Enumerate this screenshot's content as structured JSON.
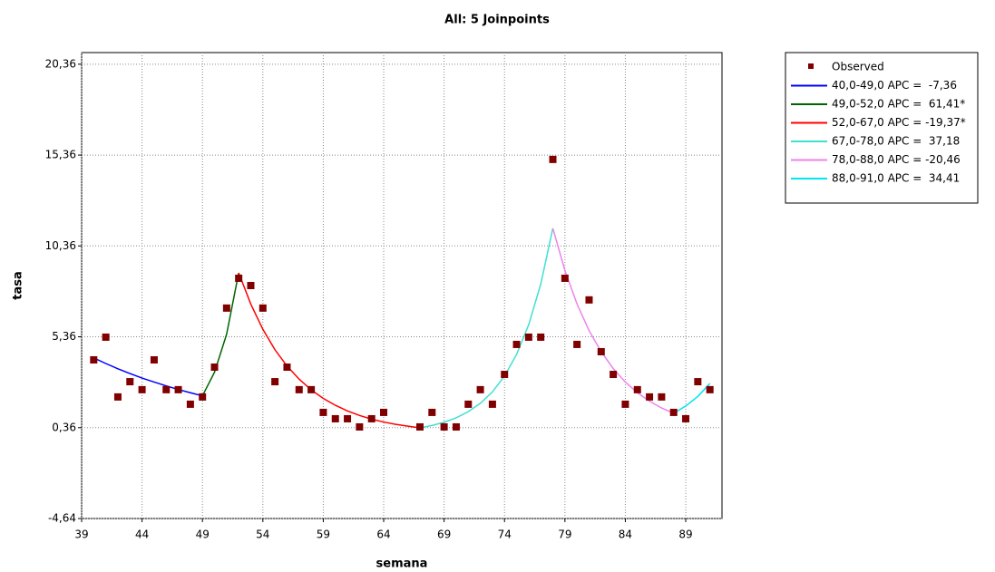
{
  "chart_data": {
    "type": "line",
    "title": "All: 5 Joinpoints",
    "x_label": "semana",
    "y_label": "tasa",
    "xlim": [
      39,
      92
    ],
    "xticks": [
      39,
      44,
      49,
      54,
      59,
      64,
      69,
      74,
      79,
      84,
      89
    ],
    "ylim": [
      -4.64,
      21.0
    ],
    "yticks": [
      {
        "value": -4.64,
        "label": "-4,64"
      },
      {
        "value": 0.36,
        "label": "0,36"
      },
      {
        "value": 5.36,
        "label": "5,36"
      },
      {
        "value": 10.36,
        "label": "10,36"
      },
      {
        "value": 15.36,
        "label": "15,36"
      },
      {
        "value": 20.36,
        "label": "20,36"
      }
    ],
    "grid": true,
    "legend": "outside-right",
    "series": [
      {
        "name": "Observed",
        "type": "scatter",
        "color": "#800000",
        "x": [
          40,
          41,
          42,
          43,
          44,
          45,
          46,
          47,
          48,
          49,
          50,
          51,
          52,
          53,
          54,
          55,
          56,
          57,
          58,
          59,
          60,
          61,
          62,
          63,
          64,
          67,
          68,
          69,
          70,
          71,
          72,
          73,
          74,
          75,
          76,
          77,
          78,
          79,
          80,
          81,
          82,
          83,
          84,
          85,
          86,
          87,
          88,
          89,
          90,
          91
        ],
        "values": [
          4.09,
          5.34,
          2.05,
          2.89,
          2.45,
          4.09,
          2.45,
          2.45,
          1.65,
          2.05,
          3.69,
          6.94,
          8.58,
          8.18,
          6.94,
          2.89,
          3.69,
          2.45,
          2.45,
          1.2,
          0.85,
          0.85,
          0.4,
          0.85,
          1.2,
          0.4,
          1.2,
          0.4,
          0.4,
          1.65,
          2.45,
          1.65,
          3.29,
          4.94,
          5.34,
          5.34,
          15.12,
          8.58,
          4.94,
          7.39,
          4.54,
          3.29,
          1.65,
          2.45,
          2.05,
          2.05,
          1.2,
          0.85,
          2.89,
          2.45
        ]
      },
      {
        "name": "40,0-49,0 APC =  -7,36",
        "type": "line",
        "color": "#0000ff",
        "x": [
          40,
          41,
          42,
          43,
          44,
          45,
          46,
          47,
          48,
          49
        ],
        "values": [
          4.2,
          3.89,
          3.6,
          3.34,
          3.09,
          2.87,
          2.66,
          2.46,
          2.28,
          2.11
        ]
      },
      {
        "name": "49,0-52,0 APC =  61,41*",
        "type": "line",
        "color": "#006400",
        "x": [
          49,
          50,
          51,
          52
        ],
        "values": [
          2.11,
          3.41,
          5.5,
          8.88
        ]
      },
      {
        "name": "52,0-67,0 APC = -19,37*",
        "type": "line",
        "color": "#ff0000",
        "x": [
          52,
          53,
          54,
          55,
          56,
          57,
          58,
          59,
          60,
          61,
          62,
          63,
          64,
          65,
          66,
          67
        ],
        "values": [
          8.88,
          7.16,
          5.77,
          4.65,
          3.75,
          3.03,
          2.44,
          1.97,
          1.59,
          1.28,
          1.03,
          0.83,
          0.67,
          0.54,
          0.44,
          0.35
        ]
      },
      {
        "name": "67,0-78,0 APC =  37,18",
        "type": "line",
        "color": "#40e0d0",
        "x": [
          67,
          68,
          69,
          70,
          71,
          72,
          73,
          74,
          75,
          76,
          77,
          78
        ],
        "values": [
          0.35,
          0.48,
          0.66,
          0.9,
          1.24,
          1.7,
          2.33,
          3.2,
          4.39,
          6.02,
          8.26,
          11.33
        ]
      },
      {
        "name": "78,0-88,0 APC = -20,46",
        "type": "line",
        "color": "#ee82ee",
        "x": [
          78,
          79,
          80,
          81,
          82,
          83,
          84,
          85,
          86,
          87,
          88
        ],
        "values": [
          11.33,
          9.01,
          7.17,
          5.7,
          4.54,
          3.61,
          2.87,
          2.28,
          1.82,
          1.44,
          1.15
        ]
      },
      {
        "name": "88,0-91,0 APC =  34,41",
        "type": "line",
        "color": "#00e5ee",
        "x": [
          88,
          89,
          90,
          91
        ],
        "values": [
          1.15,
          1.55,
          2.08,
          2.79
        ]
      }
    ]
  }
}
